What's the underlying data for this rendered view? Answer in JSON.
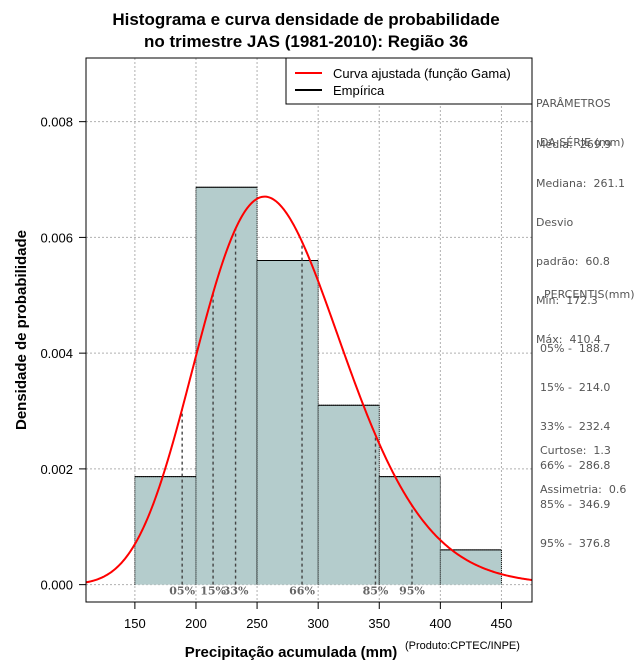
{
  "chart_data": {
    "type": "histogram",
    "title": [
      "Histograma e curva densidade de probabilidade",
      "no trimestre JAS (1981-2010): Região 36"
    ],
    "xlabel": "Precipitação acumulada (mm)",
    "ylabel": "Densidade de probabilidade",
    "xlim": [
      110,
      475
    ],
    "ylim": [
      -0.0003,
      0.0091
    ],
    "xticks": [
      "150",
      "200",
      "250",
      "300",
      "350",
      "400",
      "450"
    ],
    "yticks": [
      "0.000",
      "0.002",
      "0.004",
      "0.006",
      "0.008"
    ],
    "bins": [
      {
        "from": 150,
        "to": 200,
        "density": 0.001867
      },
      {
        "from": 200,
        "to": 250,
        "density": 0.006867
      },
      {
        "from": 250,
        "to": 300,
        "density": 0.0056
      },
      {
        "from": 300,
        "to": 350,
        "density": 0.0031
      },
      {
        "from": 350,
        "to": 400,
        "density": 0.001867
      },
      {
        "from": 400,
        "to": 450,
        "density": 0.0006
      }
    ],
    "gamma_fit": {
      "mean": 269.9,
      "sd": 60.8
    },
    "percentile_lines": [
      {
        "label": "05%",
        "value": 188.7
      },
      {
        "label": "15%",
        "value": 214.0
      },
      {
        "label": "33%",
        "value": 232.4
      },
      {
        "label": "66%",
        "value": 286.8
      },
      {
        "label": "85%",
        "value": 346.9
      },
      {
        "label": "95%",
        "value": 376.8
      }
    ],
    "legend": [
      {
        "label": "Curva ajustada (função Gama)",
        "color": "#ff0000"
      },
      {
        "label": "Empírica",
        "color": "#000000"
      }
    ],
    "colors": {
      "bar_fill": "#b4cccc",
      "curve": "#ff0000",
      "grid": "#b0b0b0"
    }
  },
  "side_panel": {
    "params_header": [
      "PARÂMETROS",
      "DA SÉRIE (mm)"
    ],
    "params": [
      "Média:  269.9",
      "Mediana:  261.1",
      "Desvio",
      "padrão:  60.8",
      "Mín:  172.3",
      "Máx:  410.4"
    ],
    "percentis_header": "PERCENTIS(mm)",
    "percentis": [
      "05% -  188.7",
      "15% -  214.0",
      "33% -  232.4",
      "66% -  286.8",
      "85% -  346.9",
      "95% -  376.8"
    ],
    "curtose": "Curtose:  1.3",
    "assimetria": "Assimetria:  0.6"
  },
  "credit": "(Produto:CPTEC/INPE)"
}
